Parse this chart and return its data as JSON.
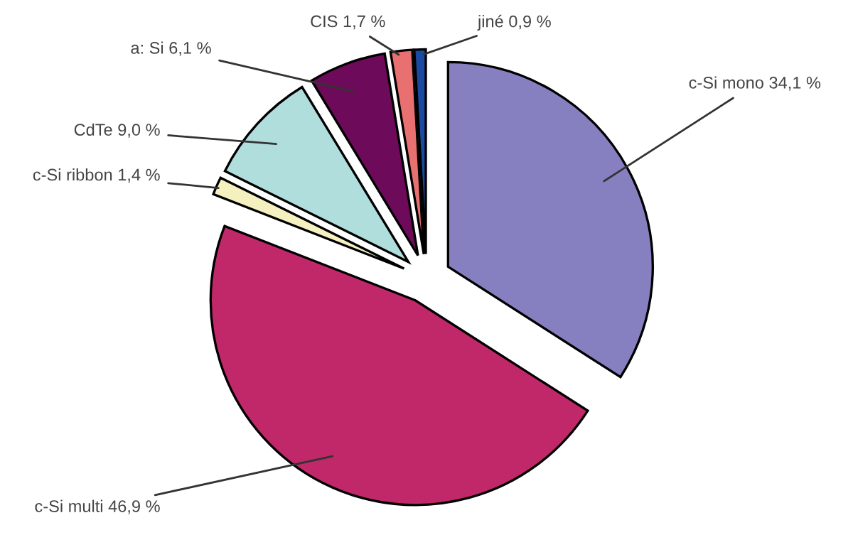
{
  "chart_data": {
    "type": "pie",
    "categories": [
      "c-Si mono",
      "c-Si multi",
      "c-Si ribbon",
      "CdTe",
      "a: Si",
      "CIS",
      "jiné"
    ],
    "values": [
      34.1,
      46.9,
      1.4,
      9.0,
      6.1,
      1.7,
      0.9
    ],
    "value_labels": [
      "34,1 %",
      "46,9 %",
      "1,4 %",
      "9,0 %",
      "6,1 %",
      "1,7 %",
      "0,9 %"
    ],
    "colors": [
      "#8680c0",
      "#c0286a",
      "#f5f0c0",
      "#b0dedd",
      "#6e0a5a",
      "#e87070",
      "#1a4aa0"
    ]
  }
}
